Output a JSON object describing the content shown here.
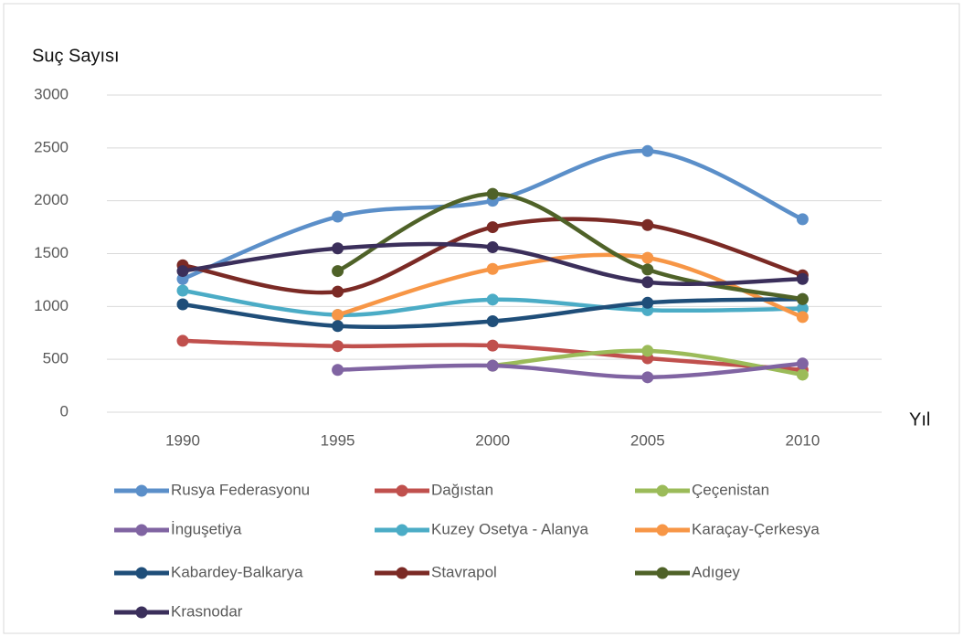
{
  "chart_data": {
    "type": "line",
    "smooth": true,
    "y_label": "Suç Sayısı",
    "x_label": "Yıl",
    "categories": [
      "1990",
      "1995",
      "2000",
      "2005",
      "2010"
    ],
    "ylim": [
      0,
      3000
    ],
    "yticks": [
      0,
      500,
      1000,
      1500,
      2000,
      2500,
      3000
    ],
    "grid": true,
    "legend": "bottom",
    "series": [
      {
        "name": "Rusya Federasyonu",
        "color": "#5b8fc9",
        "values": [
          1260,
          1850,
          2000,
          2470,
          1825
        ]
      },
      {
        "name": "Dağıstan",
        "color": "#c0504d",
        "values": [
          675,
          625,
          630,
          510,
          400
        ]
      },
      {
        "name": "Çeçenistan",
        "color": "#9bbb59",
        "values": [
          null,
          null,
          440,
          580,
          355
        ]
      },
      {
        "name": "İnguşetiya",
        "color": "#8064a2",
        "values": [
          null,
          400,
          440,
          330,
          460
        ]
      },
      {
        "name": "Kuzey Osetya - Alanya",
        "color": "#4bacc6",
        "values": [
          1150,
          920,
          1065,
          965,
          980
        ]
      },
      {
        "name": "Karaçay-Çerkesya",
        "color": "#f79646",
        "values": [
          null,
          920,
          1355,
          1460,
          900
        ]
      },
      {
        "name": "Kabardey-Balkarya",
        "color": "#1f4e79",
        "values": [
          1020,
          815,
          860,
          1035,
          1070
        ]
      },
      {
        "name": "Stavrapol",
        "color": "#7b2a25",
        "values": [
          1390,
          1140,
          1750,
          1770,
          1295
        ]
      },
      {
        "name": "Adıgey",
        "color": "#4f6228",
        "values": [
          null,
          1335,
          2065,
          1350,
          1070
        ]
      },
      {
        "name": "Krasnodar",
        "color": "#3b2f5b",
        "values": [
          1335,
          1550,
          1560,
          1230,
          1260
        ]
      }
    ]
  }
}
